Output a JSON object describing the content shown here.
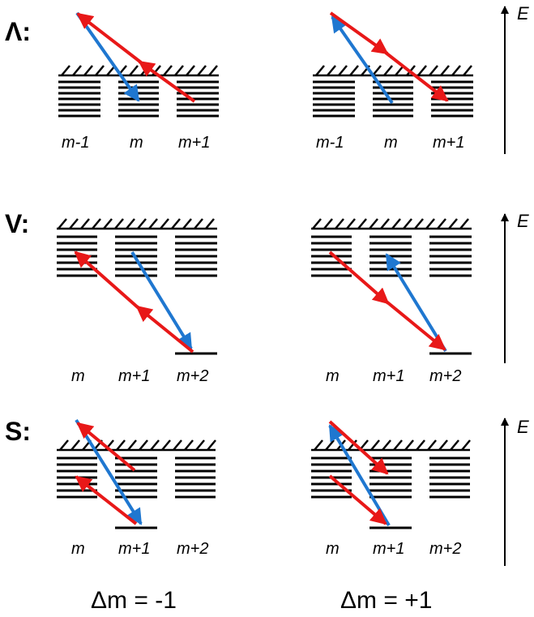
{
  "colors": {
    "emission_arrow": "#e81818",
    "absorption_arrow": "#1f77d0",
    "levels": "#000000"
  },
  "rows": [
    {
      "label": "Λ:",
      "left": {
        "labels": [
          "m-1",
          "m",
          "m+1"
        ]
      },
      "right": {
        "labels": [
          "m-1",
          "m",
          "m+1"
        ]
      },
      "energy_label": "E"
    },
    {
      "label": "V:",
      "left": {
        "labels": [
          "m",
          "m+1",
          "m+2"
        ]
      },
      "right": {
        "labels": [
          "m",
          "m+1",
          "m+2"
        ]
      },
      "energy_label": "E"
    },
    {
      "label": "S:",
      "left": {
        "labels": [
          "m",
          "m+1",
          "m+2"
        ]
      },
      "right": {
        "labels": [
          "m",
          "m+1",
          "m+2"
        ]
      },
      "energy_label": "E"
    }
  ],
  "columns": {
    "left_caption": "Δm = -1",
    "right_caption": "Δm = +1"
  }
}
